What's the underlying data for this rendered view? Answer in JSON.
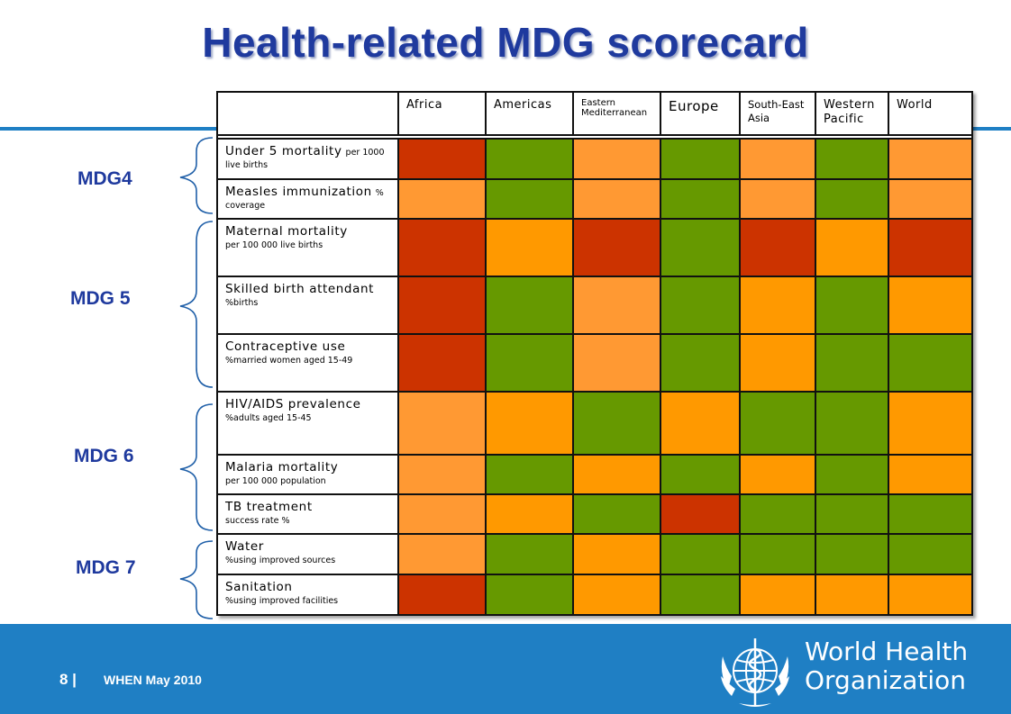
{
  "title": "Health-related MDG scorecard",
  "colors": {
    "red": "#cc3300",
    "green": "#669900",
    "light_orange": "#ff9933",
    "orange": "#ff9900"
  },
  "columns": [
    "Africa",
    "Americas",
    "Eastern Mediterranean",
    "Europe",
    "South-East Asia",
    "Western Pacific",
    "World"
  ],
  "groups": [
    {
      "label": "MDG4"
    },
    {
      "label": "MDG 5"
    },
    {
      "label": "MDG 6"
    },
    {
      "label": "MDG 7"
    }
  ],
  "indicators": [
    {
      "name": "Under 5 mortality",
      "unit_inline": "per 1000",
      "unit": "live births",
      "cells": [
        "red",
        "green",
        "light_orange",
        "green",
        "light_orange",
        "green",
        "light_orange"
      ]
    },
    {
      "name": "Measles immunization",
      "unit_inline": "%",
      "unit": "coverage",
      "cells": [
        "light_orange",
        "green",
        "light_orange",
        "green",
        "light_orange",
        "green",
        "light_orange"
      ]
    },
    {
      "name": "Maternal mortality",
      "unit_inline": "",
      "unit": "per 100 000 live births",
      "cells": [
        "red",
        "orange",
        "red",
        "green",
        "red",
        "orange",
        "red"
      ]
    },
    {
      "name": "Skilled birth attendant",
      "unit_inline": "",
      "unit": "%births",
      "cells": [
        "red",
        "green",
        "light_orange",
        "green",
        "orange",
        "green",
        "orange"
      ]
    },
    {
      "name": "Contraceptive use",
      "unit_inline": "",
      "unit": "%married women aged 15-49",
      "cells": [
        "red",
        "green",
        "light_orange",
        "green",
        "orange",
        "green",
        "green"
      ]
    },
    {
      "name": "HIV/AIDS prevalence",
      "unit_inline": "",
      "unit": "%adults aged 15-45",
      "cells": [
        "light_orange",
        "orange",
        "green",
        "orange",
        "green",
        "green",
        "orange"
      ]
    },
    {
      "name": "Malaria mortality",
      "unit_inline": "",
      "unit": "per 100 000 population",
      "cells": [
        "light_orange",
        "green",
        "orange",
        "green",
        "orange",
        "green",
        "orange"
      ]
    },
    {
      "name": "TB treatment",
      "unit_inline": "",
      "unit": "success rate %",
      "cells": [
        "light_orange",
        "orange",
        "green",
        "red",
        "green",
        "green",
        "green"
      ]
    },
    {
      "name": "Water",
      "unit_inline": "",
      "unit": "%using improved sources",
      "cells": [
        "light_orange",
        "green",
        "orange",
        "green",
        "green",
        "green",
        "green"
      ]
    },
    {
      "name": "Sanitation",
      "unit_inline": "",
      "unit": "%using improved facilities",
      "cells": [
        "red",
        "green",
        "orange",
        "green",
        "orange",
        "orange",
        "orange"
      ]
    }
  ],
  "footer": {
    "page_number": "8 |",
    "text": "WHEN May 2010"
  },
  "logo": {
    "name_line1": "World Health",
    "name_line2": "Organization",
    "icon": "who-emblem-icon"
  }
}
